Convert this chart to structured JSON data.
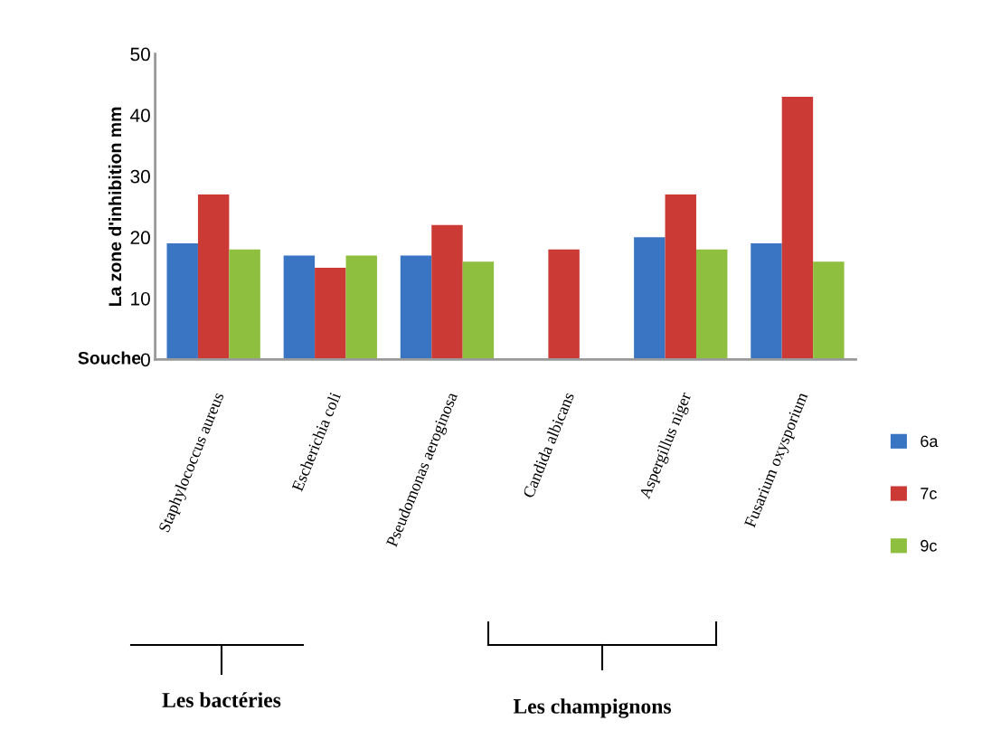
{
  "chart_data": {
    "type": "bar",
    "ylabel": "La zone d'inhibition mm",
    "xlabel": "Souche",
    "categories": [
      "Staphylococcus aureus",
      "Escherichia coli",
      "Pseudomonas aeroginosa",
      "Candida albicans",
      "Aspergillus niger",
      "Fusarium oxysporium"
    ],
    "series": [
      {
        "name": "6a",
        "color": "#3a75c4",
        "values": [
          19,
          17,
          17,
          null,
          20,
          19
        ]
      },
      {
        "name": "7c",
        "color": "#cc3a35",
        "values": [
          27,
          15,
          22,
          18,
          27,
          43
        ]
      },
      {
        "name": "9c",
        "color": "#8fbf3f",
        "values": [
          18,
          17,
          16,
          null,
          18,
          16
        ]
      }
    ],
    "ylim": [
      0,
      50
    ],
    "yticks": [
      0,
      10,
      20,
      30,
      40,
      50
    ],
    "grid": false,
    "legend": "right",
    "annotations": [
      "Les bactéries",
      "Les champignons"
    ]
  }
}
